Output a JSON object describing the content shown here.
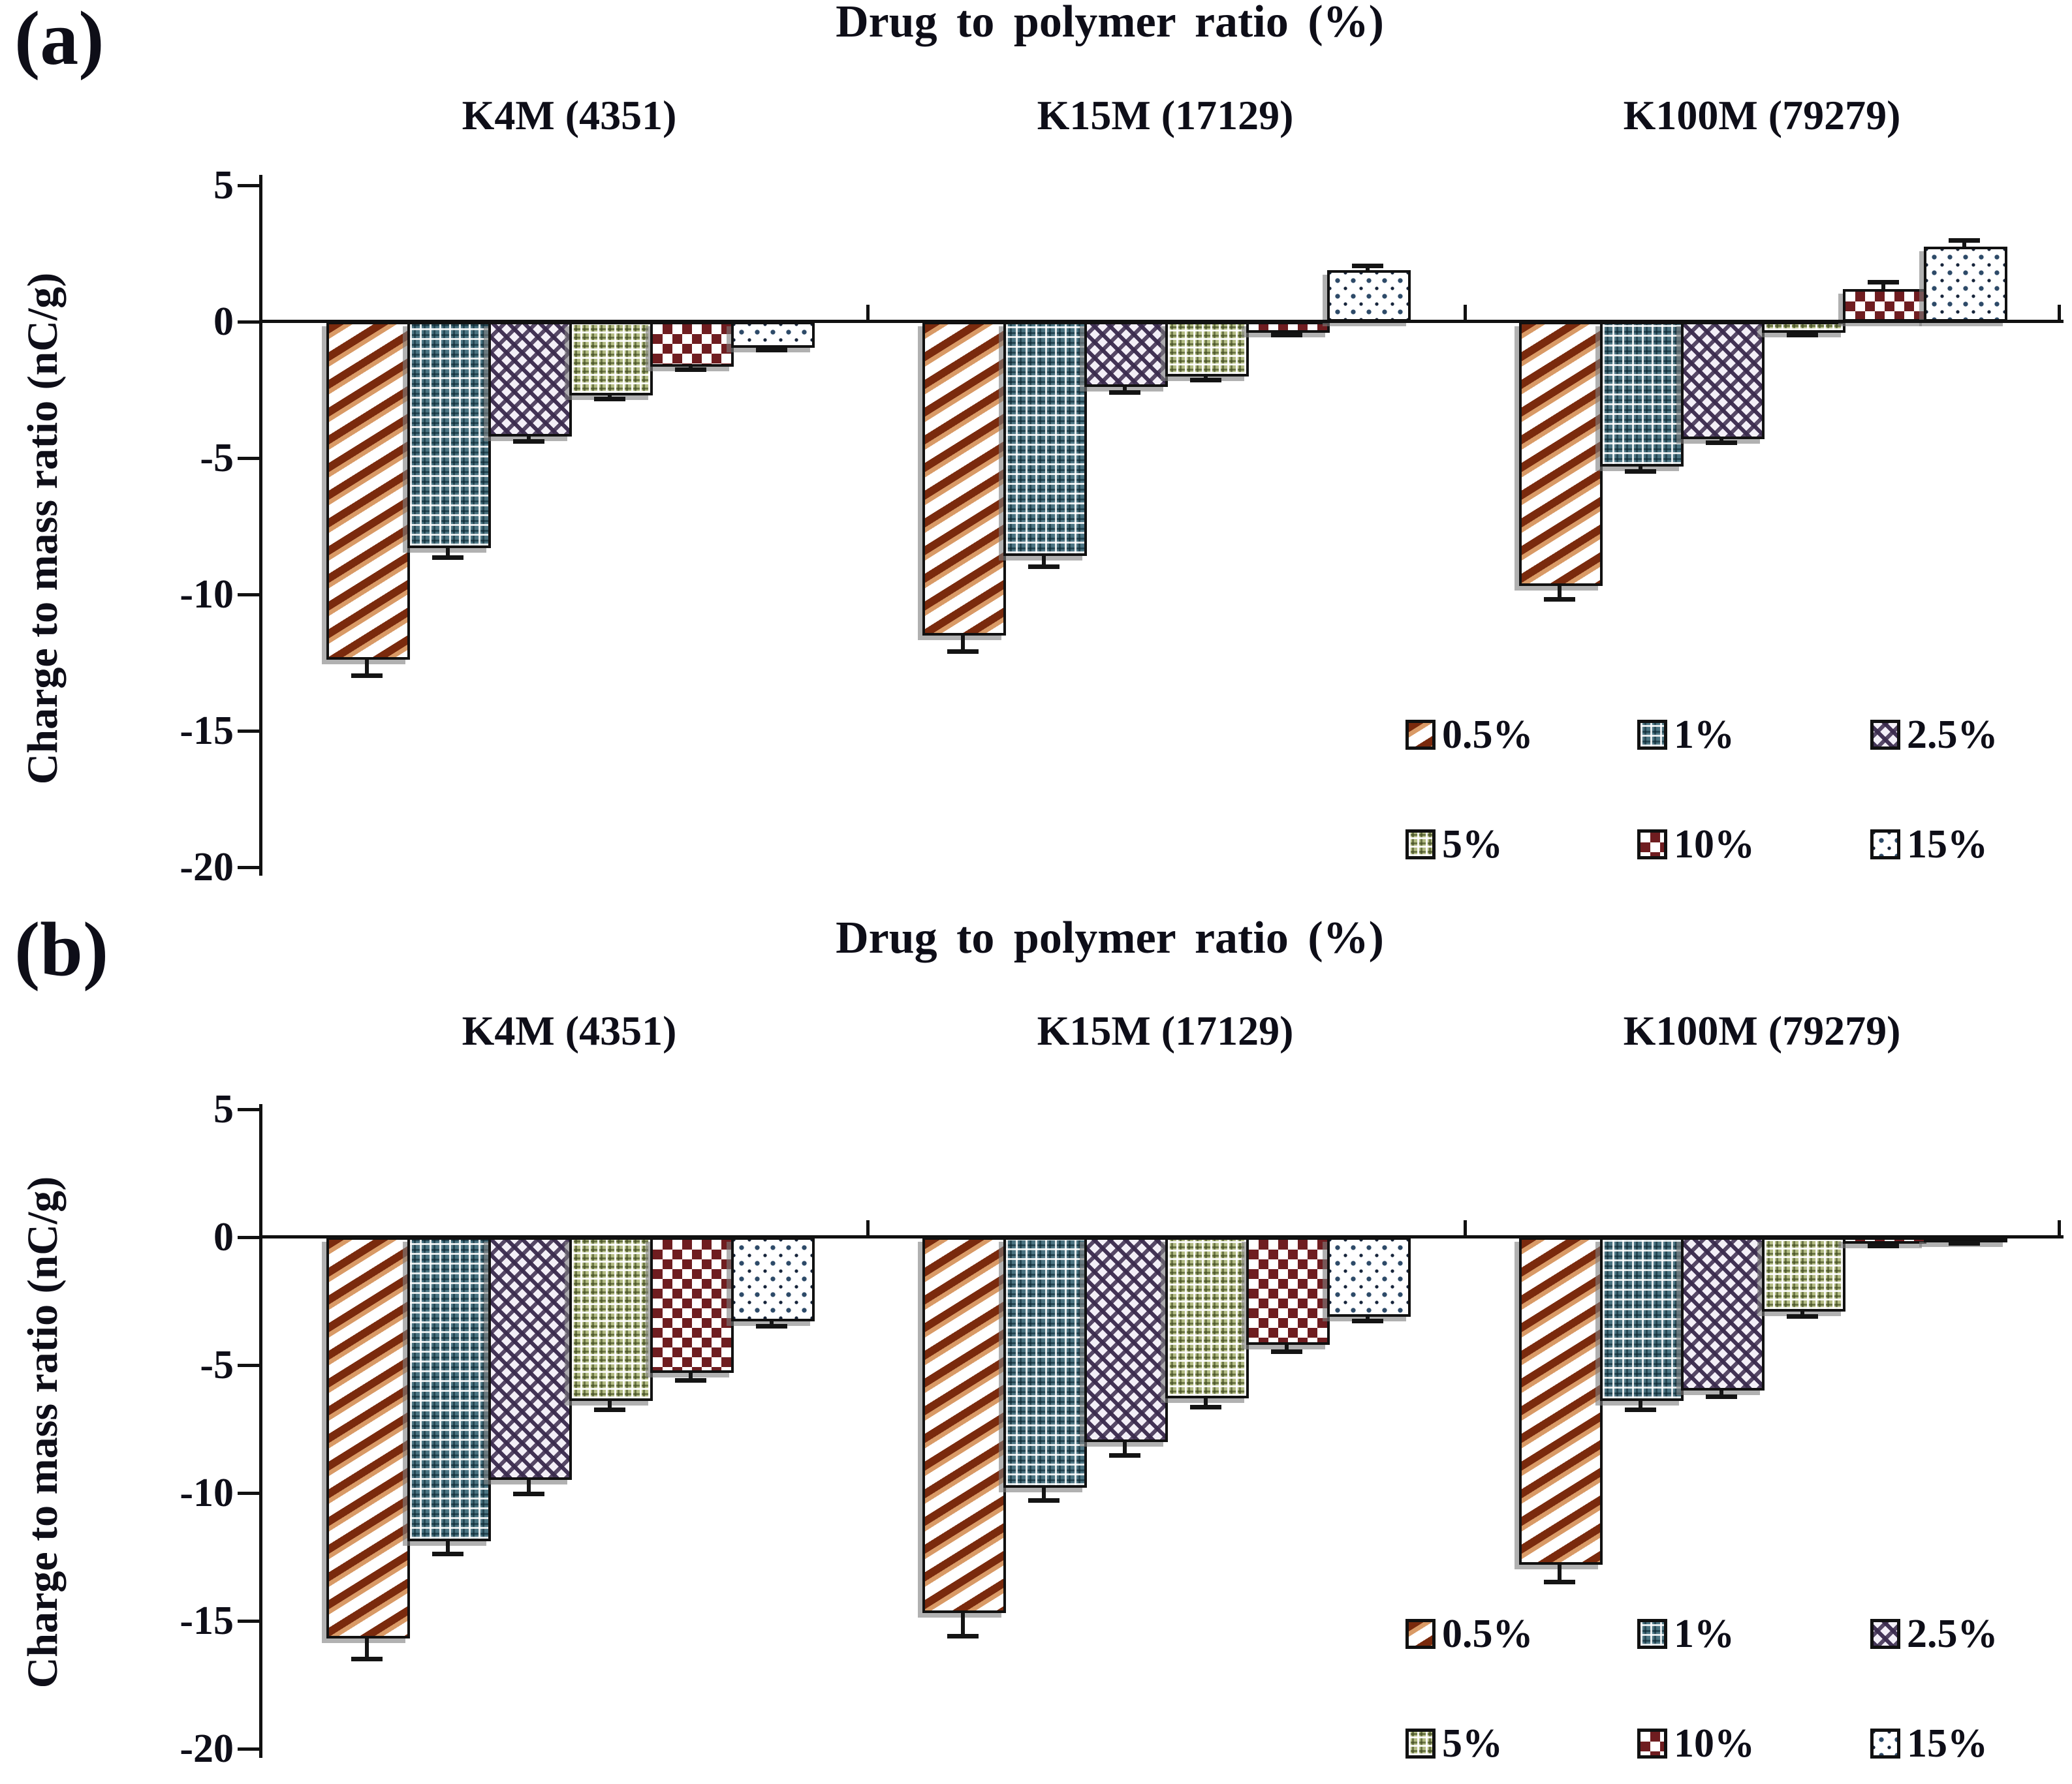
{
  "figure": {
    "panels": [
      {
        "tag": "(a)",
        "title": "Drug to polymer ratio (%)",
        "ylabel": "Charge to mass ratio (nC/g)"
      },
      {
        "tag": "(b)",
        "title": "Drug to polymer ratio (%)",
        "ylabel": "Charge to mass ratio (nC/g)"
      }
    ]
  },
  "chart_data": [
    {
      "panel": "a",
      "type": "bar",
      "title": "Drug to polymer ratio (%)",
      "ylabel": "Charge to mass ratio (nC/g)",
      "ylim": [
        -20,
        5
      ],
      "yticks": [
        5,
        0,
        -5,
        -10,
        -15,
        -20
      ],
      "grid": false,
      "legend_position": "inside-bottom-right",
      "categories": [
        "K4M (4351)",
        "K15M (17129)",
        "K100M (79279)"
      ],
      "series": [
        {
          "name": "0.5%",
          "pattern": "diagonal-stripes",
          "color": "#7a2a0d",
          "values": [
            -12.4,
            -11.5,
            -9.7
          ],
          "errors": [
            0.6,
            0.6,
            0.5
          ]
        },
        {
          "name": "1%",
          "pattern": "teal-weave-check",
          "color": "#4b7482",
          "values": [
            -8.3,
            -8.6,
            -5.3
          ],
          "errors": [
            0.35,
            0.4,
            0.2
          ]
        },
        {
          "name": "2.5%",
          "pattern": "purple-houndstooth",
          "color": "#3a2a4d",
          "values": [
            -4.2,
            -2.4,
            -4.3
          ],
          "errors": [
            0.2,
            0.2,
            0.15
          ]
        },
        {
          "name": "5%",
          "pattern": "olive-check",
          "color": "#6b7a3d",
          "values": [
            -2.7,
            -2.0,
            -0.4
          ],
          "errors": [
            0.15,
            0.15,
            0.1
          ]
        },
        {
          "name": "10%",
          "pattern": "maroon-checkerboard",
          "color": "#6f1d20",
          "values": [
            -1.65,
            -0.4,
            1.2
          ],
          "errors": [
            0.12,
            0.1,
            0.25
          ]
        },
        {
          "name": "15%",
          "pattern": "navy-speckle",
          "color": "#2d4a68",
          "values": [
            -0.95,
            1.9,
            2.75
          ],
          "errors": [
            0.1,
            0.15,
            0.25
          ]
        }
      ]
    },
    {
      "panel": "b",
      "type": "bar",
      "title": "Drug to polymer ratio (%)",
      "ylabel": "Charge to mass ratio (nC/g)",
      "ylim": [
        -20,
        5
      ],
      "yticks": [
        5,
        0,
        -5,
        -10,
        -15,
        -20
      ],
      "grid": false,
      "legend_position": "inside-bottom-right",
      "categories": [
        "K4M (4351)",
        "K15M (17129)",
        "K100M (79279)"
      ],
      "series": [
        {
          "name": "0.5%",
          "pattern": "diagonal-stripes",
          "color": "#7a2a0d",
          "values": [
            -15.7,
            -14.7,
            -12.8
          ],
          "errors": [
            0.8,
            0.9,
            0.7
          ]
        },
        {
          "name": "1%",
          "pattern": "teal-weave-check",
          "color": "#4b7482",
          "values": [
            -11.9,
            -9.8,
            -6.4
          ],
          "errors": [
            0.5,
            0.5,
            0.35
          ]
        },
        {
          "name": "2.5%",
          "pattern": "purple-houndstooth",
          "color": "#3a2a4d",
          "values": [
            -9.5,
            -8.0,
            -6.0
          ],
          "errors": [
            0.55,
            0.55,
            0.25
          ]
        },
        {
          "name": "5%",
          "pattern": "olive-check",
          "color": "#6b7a3d",
          "values": [
            -6.4,
            -6.3,
            -2.9
          ],
          "errors": [
            0.35,
            0.35,
            0.2
          ]
        },
        {
          "name": "10%",
          "pattern": "maroon-checkerboard",
          "color": "#6f1d20",
          "values": [
            -5.3,
            -4.2,
            -0.25
          ],
          "errors": [
            0.3,
            0.3,
            0.1
          ]
        },
        {
          "name": "15%",
          "pattern": "navy-speckle",
          "color": "#2d4a68",
          "values": [
            -3.3,
            -3.1,
            -0.15
          ],
          "errors": [
            0.2,
            0.2,
            0.1
          ]
        }
      ]
    }
  ]
}
